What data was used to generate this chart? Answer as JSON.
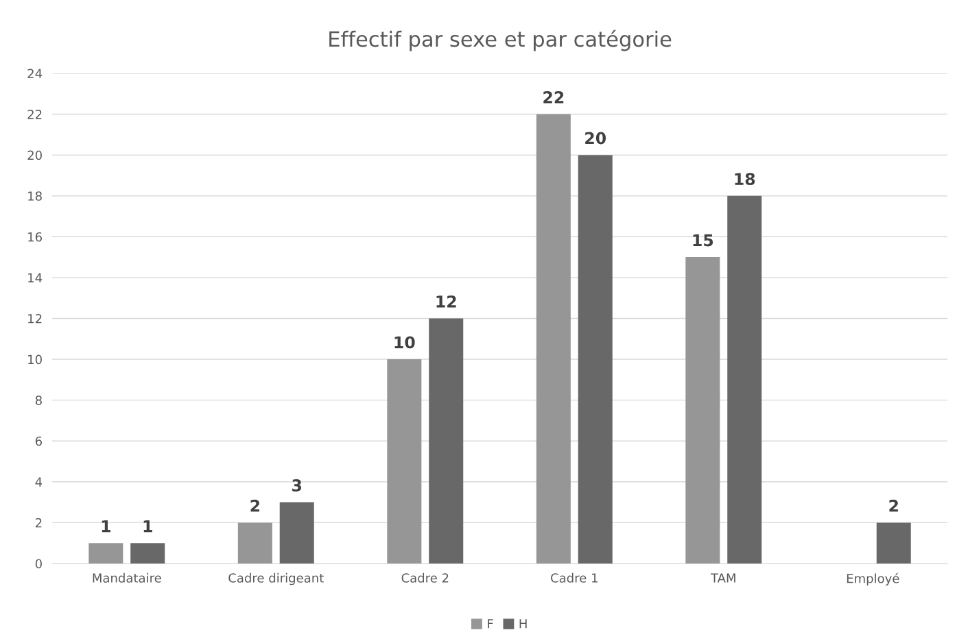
{
  "chart_data": {
    "type": "bar",
    "title": "Effectif par sexe et par catégorie",
    "categories": [
      "Mandataire",
      "Cadre dirigeant",
      "Cadre 2",
      "Cadre 1",
      "TAM",
      "Employé"
    ],
    "series": [
      {
        "name": "F",
        "color": "#969696",
        "values": [
          1,
          2,
          10,
          22,
          15,
          null
        ]
      },
      {
        "name": "H",
        "color": "#686868",
        "values": [
          1,
          3,
          12,
          20,
          18,
          2
        ]
      }
    ],
    "ylim": [
      0,
      24
    ],
    "yticks": [
      0,
      2,
      4,
      6,
      8,
      10,
      12,
      14,
      16,
      18,
      20,
      22,
      24
    ],
    "grid": "y",
    "legend": "bottom",
    "data_labels": true
  }
}
